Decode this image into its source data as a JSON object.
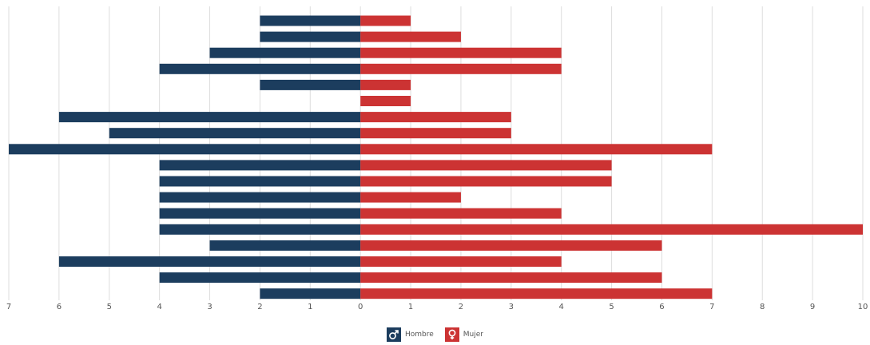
{
  "chart_data": {
    "type": "bar",
    "orientation": "horizontal",
    "layout": "diverging",
    "categories": [
      "",
      "",
      "",
      "",
      "",
      "",
      "",
      "",
      "",
      "",
      "",
      "",
      "",
      "",
      "",
      "",
      "",
      ""
    ],
    "series": [
      {
        "name": "Hombre",
        "color": "#1c3d5e",
        "values": [
          2,
          2,
          3,
          4,
          2,
          0,
          6,
          5,
          7,
          4,
          4,
          4,
          4,
          4,
          3,
          6,
          4,
          2
        ]
      },
      {
        "name": "Mujer",
        "color": "#cc3333",
        "values": [
          1,
          2,
          4,
          4,
          1,
          1,
          3,
          3,
          7,
          5,
          5,
          2,
          4,
          10,
          6,
          4,
          6,
          7
        ]
      }
    ],
    "x_ticks": [
      "7",
      "6",
      "5",
      "4",
      "3",
      "2",
      "1",
      "0",
      "1",
      "2",
      "3",
      "4",
      "5",
      "6",
      "7",
      "8",
      "9",
      "10"
    ],
    "xlim": [
      -7,
      10
    ],
    "grid": true,
    "legend_position": "bottom-center"
  },
  "legend": {
    "male_label": "Hombre",
    "female_label": "Mujer",
    "male_icon": "male-symbol-icon",
    "female_icon": "female-symbol-icon"
  }
}
